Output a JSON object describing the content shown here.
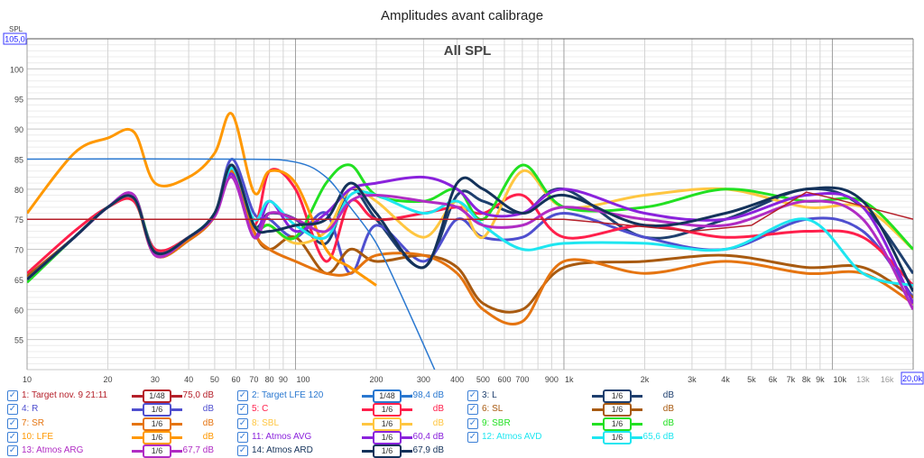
{
  "chart_data": {
    "type": "line",
    "title": "Amplitudes avant calibrage",
    "subtitle": "All SPL",
    "ylabel": "SPL",
    "ylim": [
      50,
      105
    ],
    "ymax_box": "105,0",
    "xlim": [
      10,
      20000
    ],
    "xmax_box": "20,0k",
    "x_scale": "log",
    "grid": true,
    "legend_placement": "bottom",
    "y_ticks": [
      "55",
      "60",
      "65",
      "70",
      "75",
      "80",
      "85",
      "90",
      "95",
      "100"
    ],
    "y_tick_values": [
      55,
      60,
      65,
      70,
      75,
      80,
      85,
      90,
      95,
      100
    ],
    "x_ticks": [
      "10",
      "20",
      "30",
      "40",
      "50",
      "60",
      "70",
      "80",
      "90",
      "100",
      "200",
      "300",
      "400",
      "500",
      "600",
      "700",
      "900",
      "1k",
      "2k",
      "3k",
      "4k",
      "5k",
      "6k",
      "7k",
      "8k",
      "9k",
      "10k",
      "13k",
      "16k"
    ],
    "x_tick_values": [
      10,
      20,
      30,
      40,
      50,
      60,
      70,
      80,
      90,
      100,
      200,
      300,
      400,
      500,
      600,
      700,
      900,
      1000,
      2000,
      3000,
      4000,
      5000,
      6000,
      7000,
      8000,
      9000,
      10000,
      13000,
      16000
    ],
    "x": [
      10,
      15,
      20,
      25,
      30,
      40,
      50,
      58,
      70,
      80,
      100,
      130,
      160,
      200,
      300,
      400,
      500,
      700,
      1000,
      2000,
      4000,
      8000,
      13000,
      20000
    ],
    "targets": [
      {
        "name": "1: Target nov. 9 21:11",
        "color": "#b5202a",
        "x": [
          10,
          1000,
          3000,
          5000,
          8000,
          10000,
          20000
        ],
        "values": [
          75,
          75,
          73,
          74,
          79.5,
          78.5,
          75
        ]
      },
      {
        "name": "2: Target LFE 120",
        "color": "#2a78d0",
        "x": [
          10,
          60,
          100,
          130,
          160,
          200,
          250,
          330
        ],
        "values": [
          85,
          85,
          84.5,
          82,
          77,
          71,
          62,
          50
        ]
      }
    ],
    "series": [
      {
        "name": "3: L",
        "color": "#1e3f6e",
        "values": [
          65,
          72,
          77,
          78.5,
          69.5,
          72,
          76,
          84,
          74,
          76,
          75,
          71,
          80,
          75,
          67,
          79,
          78,
          76,
          80,
          72,
          75,
          80,
          77,
          66
        ]
      },
      {
        "name": "4: R",
        "color": "#4f4fcf",
        "values": [
          65,
          72,
          77,
          78.5,
          70,
          72,
          76,
          85,
          76,
          75,
          72,
          76,
          66,
          74,
          68,
          75,
          72,
          72,
          76,
          72,
          70,
          75,
          73,
          62
        ]
      },
      {
        "name": "5: C",
        "color": "#ff1f4b",
        "values": [
          66,
          73,
          77,
          78,
          70,
          72,
          76,
          84,
          74,
          83,
          80,
          68,
          78,
          75,
          76,
          77,
          76,
          79,
          72,
          74,
          72,
          73,
          72,
          64
        ]
      },
      {
        "name": "6: SL",
        "color": "#a85a10",
        "values": [
          65.5,
          72,
          77,
          78.5,
          69,
          71.5,
          75.5,
          83,
          73,
          70,
          72,
          66,
          70,
          68,
          69,
          67,
          61,
          60,
          67,
          68,
          69,
          67,
          67,
          62
        ]
      },
      {
        "name": "7: SR",
        "color": "#e57410",
        "values": [
          65,
          72,
          77,
          78.5,
          69,
          71.5,
          75.5,
          83,
          73,
          70,
          68,
          66,
          66,
          69,
          69,
          66,
          60,
          58,
          68,
          66,
          68,
          66,
          66,
          61
        ]
      },
      {
        "name": "8: SBL",
        "color": "#ffc640",
        "values": [
          65,
          72,
          77,
          78.5,
          69.5,
          72,
          76,
          84,
          74,
          74,
          71,
          73,
          80,
          78,
          72,
          78,
          72,
          83,
          77,
          79,
          80,
          77,
          77,
          70
        ]
      },
      {
        "name": "9: SBR",
        "color": "#22e022",
        "values": [
          64.5,
          72,
          77,
          79,
          69.5,
          72,
          76,
          84,
          74,
          74,
          72,
          81,
          84,
          79,
          78,
          80,
          75,
          84,
          77,
          77,
          80,
          78,
          78,
          70
        ]
      },
      {
        "name": "10: LFE",
        "color": "#ff9800",
        "values": [
          76,
          86,
          88.5,
          89.5,
          81,
          82,
          86,
          92.5,
          79.5,
          83,
          81,
          70,
          67,
          64,
          null,
          null,
          null,
          null,
          null,
          null,
          null,
          null,
          null,
          null
        ]
      },
      {
        "name": "11: Atmos AVG",
        "color": "#8a22dc",
        "values": [
          65,
          72,
          77,
          79,
          69,
          72,
          75.5,
          82.5,
          72,
          78,
          73,
          76,
          80,
          81,
          82,
          80,
          76,
          76,
          80,
          76,
          75,
          79,
          77,
          61
        ]
      },
      {
        "name": "12: Atmos AVD",
        "color": "#1ee6f0",
        "values": [
          65,
          72,
          77,
          78.5,
          69.5,
          72,
          76,
          83.5,
          75,
          78,
          74,
          72,
          79,
          79,
          76,
          78,
          74,
          70,
          71,
          71,
          70,
          75,
          66,
          64
        ]
      },
      {
        "name": "13: Atmos ARG",
        "color": "#b02cc4",
        "values": [
          65,
          72,
          77,
          79,
          69,
          72,
          75.5,
          82,
          72,
          76,
          75,
          73,
          78,
          79,
          78,
          77,
          74,
          74,
          77,
          75,
          74,
          78,
          75,
          60
        ]
      },
      {
        "name": "14: Atmos ARD",
        "color": "#14325a",
        "values": [
          65,
          72,
          77,
          78.5,
          69.5,
          72,
          76,
          84,
          74,
          73,
          74,
          75,
          81,
          76,
          67,
          81,
          80,
          76,
          79,
          74,
          76,
          80,
          78,
          63
        ]
      }
    ]
  },
  "legend": [
    {
      "label": "1: Target nov. 9 21:11",
      "smoothing": "1/48",
      "value": "75,0 dB",
      "color": "#b5202a"
    },
    {
      "label": "2: Target LFE 120",
      "smoothing": "1/48",
      "value": "-98,4 dB",
      "color": "#2a78d0"
    },
    {
      "label": "3: L",
      "smoothing": "1/6",
      "value": "dB",
      "color": "#1e3f6e"
    },
    {
      "label": "4: R",
      "smoothing": "1/6",
      "value": "dB",
      "color": "#4f4fcf"
    },
    {
      "label": "5: C",
      "smoothing": "1/6",
      "value": "dB",
      "color": "#ff1f4b"
    },
    {
      "label": "6: SL",
      "smoothing": "1/6",
      "value": "dB",
      "color": "#a85a10"
    },
    {
      "label": "7: SR",
      "smoothing": "1/6",
      "value": "dB",
      "color": "#e57410"
    },
    {
      "label": "8: SBL",
      "smoothing": "1/6",
      "value": "dB",
      "color": "#ffc640"
    },
    {
      "label": "9: SBR",
      "smoothing": "1/6",
      "value": "dB",
      "color": "#22e022"
    },
    {
      "label": "10: LFE",
      "smoothing": "1/6",
      "value": "dB",
      "color": "#ff9800"
    },
    {
      "label": "11: Atmos AVG",
      "smoothing": "1/6",
      "value": "60,4 dB",
      "color": "#8a22dc"
    },
    {
      "label": "12: Atmos AVD",
      "smoothing": "1/6",
      "value": "65,6 dB",
      "color": "#1ee6f0"
    },
    {
      "label": "13: Atmos ARG",
      "smoothing": "1/6",
      "value": "67,7 dB",
      "color": "#b02cc4"
    },
    {
      "label": "14: Atmos ARD",
      "smoothing": "1/6",
      "value": "67,9 dB",
      "color": "#14325a"
    }
  ],
  "checkbox_glyph": "✓"
}
